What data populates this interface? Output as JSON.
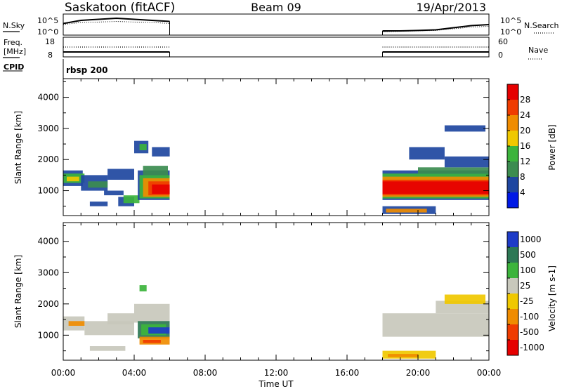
{
  "header": {
    "station": "Saskatoon (fitACF)",
    "beam": "Beam 09",
    "date": "19/Apr/2013"
  },
  "top_panels": {
    "nsky_label": "N.Sky",
    "nsearch_label": "N.Search",
    "nsky_ticks": [
      "10^5",
      "10^0"
    ],
    "nsearch_ticks": [
      "10^5",
      "10^0"
    ],
    "freq_label": "Freq.",
    "freq_unit": "[MHz]",
    "freq_ticks": [
      "18",
      "8"
    ],
    "nave_label": "Nave",
    "nave_ticks": [
      "60",
      "0"
    ],
    "cpid_label": "CPID",
    "cpid_value": "rbsp 200"
  },
  "colors": {
    "power_scale": [
      "#0019e6",
      "#1e46a0",
      "#3c8c50",
      "#3cb43c",
      "#f0c800",
      "#f08c00",
      "#f03c00",
      "#e60000"
    ],
    "velocity_scale": [
      "#1e3cc8",
      "#2d7855",
      "#3cb43c",
      "#c8c8bc",
      "#f0c800",
      "#f08c00",
      "#f03c00",
      "#e60000"
    ],
    "ground_scatter": "#c8c8bc"
  },
  "chart_data": [
    {
      "type": "line",
      "name": "noise-search-panel",
      "x": [
        "00:00",
        "01:00",
        "02:00",
        "03:00",
        "04:00",
        "05:00",
        "06:00",
        "18:00",
        "19:00",
        "20:00",
        "21:00",
        "22:00",
        "23:00",
        "24:00"
      ],
      "series": [
        {
          "name": "N.Sky",
          "values": [
            0.55,
            0.7,
            0.75,
            0.8,
            0.75,
            0.7,
            0.65,
            0.2,
            0.2,
            0.22,
            0.25,
            0.35,
            0.45,
            0.5
          ]
        },
        {
          "name": "N.Search",
          "values": [
            0.5,
            0.6,
            0.62,
            0.65,
            0.62,
            0.6,
            0.55,
            0.15,
            0.18,
            0.2,
            0.22,
            0.3,
            0.38,
            0.42
          ]
        }
      ]
    },
    {
      "type": "line",
      "name": "freq-nave-panel",
      "x": [
        "00:00",
        "06:00",
        "18:00",
        "24:00"
      ],
      "series": [
        {
          "name": "Freq.",
          "values": [
            10.5,
            10.5,
            10.5,
            10.5
          ]
        },
        {
          "name": "Nave",
          "values": [
            30,
            30,
            30,
            30
          ]
        }
      ]
    },
    {
      "type": "heatmap",
      "name": "power-panel",
      "ylabel": "Slant Range [km]",
      "yticks": [
        "1000",
        "2000",
        "3000",
        "4000"
      ],
      "ylim": [
        200,
        4600
      ],
      "colorbar_label": "Power [dB]",
      "colorbar_ticks": [
        "4",
        "8",
        "12",
        "16",
        "20",
        "24",
        "28"
      ],
      "blocks": [
        {
          "t0": 0.0,
          "t1": 1.1,
          "r0": 1150,
          "r1": 1650,
          "level": 1
        },
        {
          "t0": 0.0,
          "t1": 1.2,
          "r0": 1250,
          "r1": 1550,
          "level": 3
        },
        {
          "t0": 0.2,
          "t1": 0.9,
          "r0": 1300,
          "r1": 1450,
          "level": 4
        },
        {
          "t0": 1.0,
          "t1": 2.5,
          "r0": 1000,
          "r1": 1500,
          "level": 1
        },
        {
          "t0": 1.4,
          "t1": 2.5,
          "r0": 1100,
          "r1": 1300,
          "level": 2
        },
        {
          "t0": 2.5,
          "t1": 4.0,
          "r0": 1350,
          "r1": 1700,
          "level": 1
        },
        {
          "t0": 2.3,
          "t1": 3.4,
          "r0": 850,
          "r1": 1000,
          "level": 1
        },
        {
          "t0": 1.5,
          "t1": 2.5,
          "r0": 500,
          "r1": 650,
          "level": 1
        },
        {
          "t0": 3.1,
          "t1": 4.0,
          "r0": 500,
          "r1": 800,
          "level": 1
        },
        {
          "t0": 3.4,
          "t1": 4.3,
          "r0": 600,
          "r1": 850,
          "level": 3
        },
        {
          "t0": 4.2,
          "t1": 6.0,
          "r0": 700,
          "r1": 1650,
          "level": 1
        },
        {
          "t0": 4.3,
          "t1": 6.0,
          "r0": 750,
          "r1": 1500,
          "level": 3
        },
        {
          "t0": 4.5,
          "t1": 6.0,
          "r0": 800,
          "r1": 1400,
          "level": 5
        },
        {
          "t0": 4.8,
          "t1": 6.0,
          "r0": 850,
          "r1": 1300,
          "level": 6
        },
        {
          "t0": 5.0,
          "t1": 6.0,
          "r0": 900,
          "r1": 1200,
          "level": 7
        },
        {
          "t0": 4.5,
          "t1": 5.9,
          "r0": 1500,
          "r1": 1800,
          "level": 2
        },
        {
          "t0": 4.0,
          "t1": 4.8,
          "r0": 2200,
          "r1": 2600,
          "level": 1
        },
        {
          "t0": 4.3,
          "t1": 4.7,
          "r0": 2300,
          "r1": 2500,
          "level": 3
        },
        {
          "t0": 5.0,
          "t1": 6.0,
          "r0": 2100,
          "r1": 2400,
          "level": 1
        },
        {
          "t0": 18.0,
          "t1": 24.0,
          "r0": 700,
          "r1": 1650,
          "level": 1
        },
        {
          "t0": 18.0,
          "t1": 24.0,
          "r0": 750,
          "r1": 1550,
          "level": 3
        },
        {
          "t0": 18.0,
          "t1": 24.0,
          "r0": 800,
          "r1": 1450,
          "level": 5
        },
        {
          "t0": 18.0,
          "t1": 24.0,
          "r0": 850,
          "r1": 1350,
          "level": 6
        },
        {
          "t0": 18.0,
          "t1": 24.0,
          "r0": 900,
          "r1": 1300,
          "level": 7
        },
        {
          "t0": 20.0,
          "t1": 24.0,
          "r0": 1550,
          "r1": 1750,
          "level": 2
        },
        {
          "t0": 21.5,
          "t1": 24.0,
          "r0": 1750,
          "r1": 2100,
          "level": 1
        },
        {
          "t0": 19.5,
          "t1": 21.5,
          "r0": 2000,
          "r1": 2400,
          "level": 1
        },
        {
          "t0": 18.0,
          "t1": 21.0,
          "r0": 250,
          "r1": 500,
          "level": 1
        },
        {
          "t0": 18.2,
          "t1": 20.5,
          "r0": 300,
          "r1": 420,
          "level": 5
        },
        {
          "t0": 21.5,
          "t1": 23.8,
          "r0": 2900,
          "r1": 3100,
          "level": 1
        }
      ]
    },
    {
      "type": "heatmap",
      "name": "velocity-panel",
      "ylabel": "Slant Range [km]",
      "yticks": [
        "1000",
        "2000",
        "3000",
        "4000"
      ],
      "ylim": [
        200,
        4600
      ],
      "xlabel": "Time UT",
      "xticks": [
        "00:00",
        "04:00",
        "08:00",
        "12:00",
        "16:00",
        "20:00",
        "00:00"
      ],
      "xlim": [
        0,
        24
      ],
      "colorbar_label": "Velocity [m s-1]",
      "colorbar_ticks": [
        "1000",
        "500",
        "100",
        "25",
        "-25",
        "-100",
        "-500",
        "-1000"
      ],
      "blocks": [
        {
          "t0": 0.0,
          "t1": 1.2,
          "r0": 1150,
          "r1": 1600,
          "level": 3
        },
        {
          "t0": 1.2,
          "t1": 4.0,
          "r0": 1000,
          "r1": 1450,
          "level": 3
        },
        {
          "t0": 2.5,
          "t1": 4.0,
          "r0": 1350,
          "r1": 1700,
          "level": 3
        },
        {
          "t0": 4.0,
          "t1": 6.0,
          "r0": 1400,
          "r1": 2000,
          "level": 3
        },
        {
          "t0": 1.5,
          "t1": 3.5,
          "r0": 500,
          "r1": 650,
          "level": 3
        },
        {
          "t0": 4.2,
          "t1": 6.0,
          "r0": 900,
          "r1": 1450,
          "level": 1
        },
        {
          "t0": 4.4,
          "t1": 5.8,
          "r0": 1000,
          "r1": 1350,
          "level": 2
        },
        {
          "t0": 4.8,
          "t1": 6.0,
          "r0": 1050,
          "r1": 1250,
          "level": 0
        },
        {
          "t0": 4.3,
          "t1": 6.0,
          "r0": 700,
          "r1": 950,
          "level": 5
        },
        {
          "t0": 4.5,
          "t1": 5.5,
          "r0": 750,
          "r1": 850,
          "level": 6
        },
        {
          "t0": 0.3,
          "t1": 1.2,
          "r0": 1300,
          "r1": 1450,
          "level": 5
        },
        {
          "t0": 4.3,
          "t1": 4.7,
          "r0": 2400,
          "r1": 2600,
          "level": 2
        },
        {
          "t0": 18.0,
          "t1": 24.0,
          "r0": 950,
          "r1": 1700,
          "level": 3
        },
        {
          "t0": 21.0,
          "t1": 24.0,
          "r0": 1700,
          "r1": 2100,
          "level": 3
        },
        {
          "t0": 18.0,
          "t1": 21.0,
          "r0": 250,
          "r1": 500,
          "level": 4
        },
        {
          "t0": 18.3,
          "t1": 20.0,
          "r0": 300,
          "r1": 400,
          "level": 5
        },
        {
          "t0": 21.5,
          "t1": 23.8,
          "r0": 2000,
          "r1": 2300,
          "level": 4
        }
      ]
    }
  ]
}
